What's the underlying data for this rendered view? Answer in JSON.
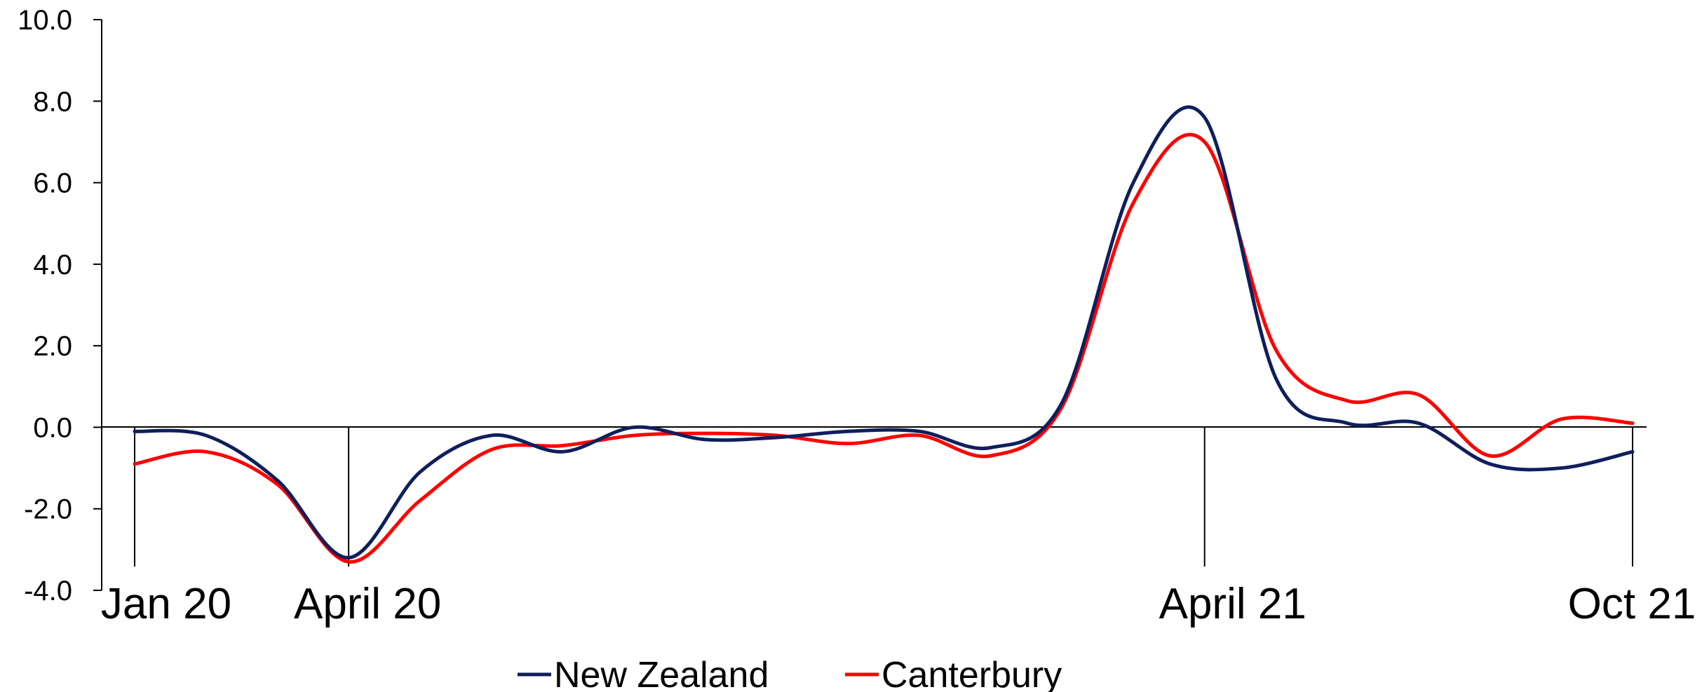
{
  "chart_data": {
    "type": "line",
    "title": "",
    "xlabel": "",
    "ylabel": "",
    "ylim": [
      -4,
      10
    ],
    "yticks": [
      "10.0",
      "8.0",
      "6.0",
      "4.0",
      "2.0",
      "0.0",
      "-2.0",
      "-4.0"
    ],
    "grid": false,
    "legend_position": "bottom",
    "x_labels": [
      {
        "label": "Jan 20",
        "index": 0
      },
      {
        "label": "April 20",
        "index": 3
      },
      {
        "label": "April 21",
        "index": 15
      },
      {
        "label": "Oct 21",
        "index": 21
      }
    ],
    "x_count": 22,
    "series": [
      {
        "name": "New Zealand",
        "color": "#0f1f5c",
        "values": [
          -0.1,
          -0.2,
          -1.3,
          -3.2,
          -1.1,
          -0.2,
          -0.6,
          0.0,
          -0.3,
          -0.25,
          -0.1,
          -0.1,
          -0.5,
          0.6,
          6.0,
          7.6,
          1.2,
          0.1,
          0.1,
          -0.9,
          -1.0,
          -0.6
        ]
      },
      {
        "name": "Canterbury",
        "color": "#ff0000",
        "values": [
          -0.9,
          -0.6,
          -1.4,
          -3.3,
          -1.8,
          -0.55,
          -0.45,
          -0.2,
          -0.15,
          -0.2,
          -0.4,
          -0.2,
          -0.7,
          0.5,
          5.5,
          7.0,
          1.9,
          0.65,
          0.8,
          -0.7,
          0.2,
          0.1
        ]
      }
    ]
  }
}
